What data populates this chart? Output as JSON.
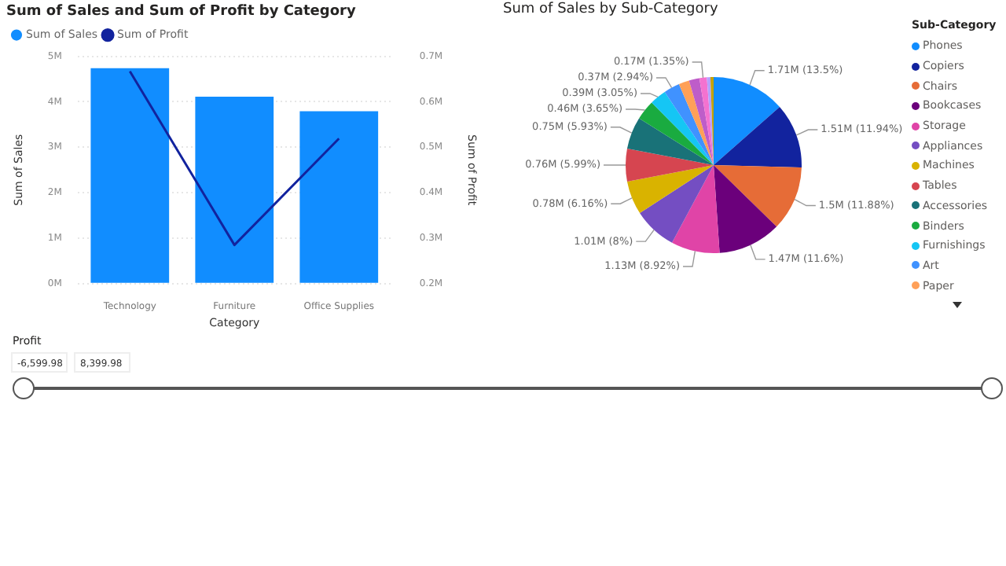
{
  "chart_data": [
    {
      "type": "bar",
      "title": "Sum of Sales and Sum of Profit by Category",
      "xlabel": "Category",
      "ylabel": "Sum of Sales",
      "y2label": "Sum of Profit",
      "categories": [
        "Technology",
        "Furniture",
        "Office Supplies"
      ],
      "series": [
        {
          "name": "Sum of Sales",
          "type": "bar",
          "color": "#118dff",
          "values": [
            4.74,
            4.11,
            3.79
          ]
        },
        {
          "name": "Sum of Profit",
          "type": "line",
          "axis": "y2",
          "color": "#12239e",
          "values": [
            0.667,
            0.285,
            0.519
          ]
        }
      ],
      "ylim": [
        0,
        5
      ],
      "yticks": [
        {
          "value": 0,
          "label": "0M"
        },
        {
          "value": 1,
          "label": "1M"
        },
        {
          "value": 2,
          "label": "2M"
        },
        {
          "value": 3,
          "label": "3M"
        },
        {
          "value": 4,
          "label": "4M"
        },
        {
          "value": 5,
          "label": "5M"
        }
      ],
      "y2lim": [
        0.2,
        0.7
      ],
      "y2ticks": [
        {
          "value": 0.2,
          "label": "0.2M"
        },
        {
          "value": 0.3,
          "label": "0.3M"
        },
        {
          "value": 0.4,
          "label": "0.4M"
        },
        {
          "value": 0.5,
          "label": "0.5M"
        },
        {
          "value": 0.6,
          "label": "0.6M"
        },
        {
          "value": 0.7,
          "label": "0.7M"
        }
      ],
      "grid": "y",
      "legend": "top left"
    },
    {
      "type": "pie",
      "title": "Sum of Sales by Sub-Category",
      "legend_title": "Sub-Category",
      "legend": "right",
      "categories": [
        "Phones",
        "Copiers",
        "Chairs",
        "Bookcases",
        "Storage",
        "Appliances",
        "Machines",
        "Tables",
        "Accessories",
        "Binders",
        "Furnishings",
        "Art",
        "Paper",
        null,
        null,
        null,
        null
      ],
      "values": [
        13.5,
        11.94,
        11.88,
        11.6,
        8.92,
        8,
        6.16,
        5.99,
        5.93,
        3.65,
        3.05,
        2.94,
        1.93,
        1.92,
        1.35,
        0.66,
        0.58
      ],
      "colors": [
        "#118dff",
        "#12239e",
        "#e66c37",
        "#6b007b",
        "#e044a7",
        "#744ec2",
        "#d9b300",
        "#d64550",
        "#197278",
        "#1aab40",
        "#15c6f4",
        "#4092ff",
        "#ffa058",
        "#be5dc9",
        "#f472d0",
        "#b5a1ff",
        "#c4a200"
      ],
      "value_labels": [
        "1.71M (13.5%)",
        "1.51M (11.94%)",
        "1.5M (11.88%)",
        "1.47M (11.6%)",
        "1.13M (8.92%)",
        "1.01M (8%)",
        "0.78M (6.16%)",
        "0.76M (5.99%)",
        "0.75M (5.93%)",
        "0.46M (3.65%)",
        "0.39M (3.05%)",
        "0.37M (2.94%)",
        null,
        null,
        "0.17M (1.35%)",
        null,
        null
      ]
    },
    {
      "type": "other",
      "title": "Profit",
      "annotations": [
        "-6,599.98",
        "8,399.98"
      ]
    }
  ]
}
